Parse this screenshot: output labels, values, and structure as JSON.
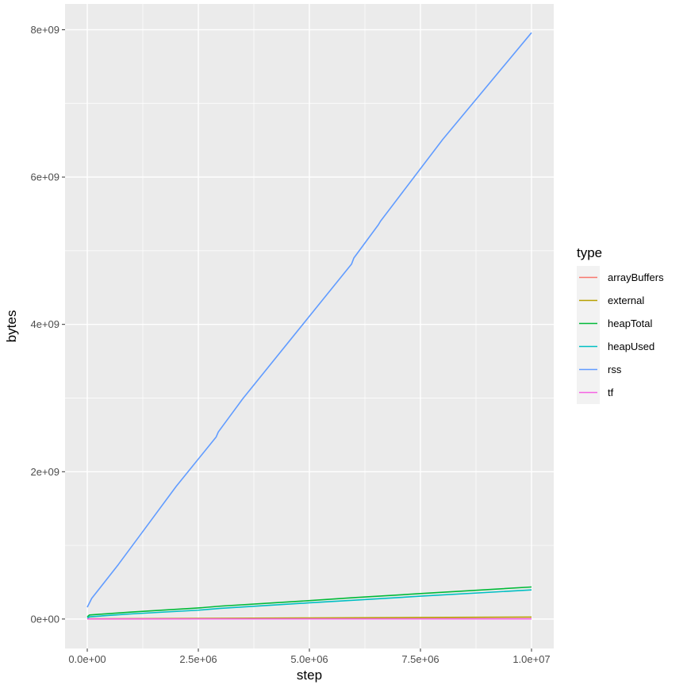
{
  "chart_data": {
    "type": "line",
    "xlabel": "step",
    "ylabel": "bytes",
    "xlim": [
      -500000,
      10500000
    ],
    "ylim": [
      -400000000,
      8350000000
    ],
    "x_ticks": [
      0,
      2500000,
      5000000,
      7500000,
      10000000
    ],
    "x_tick_labels": [
      "0.0e+00",
      "2.5e+06",
      "5.0e+06",
      "7.5e+06",
      "1.0e+07"
    ],
    "y_ticks": [
      0,
      2000000000,
      4000000000,
      6000000000,
      8000000000
    ],
    "y_tick_labels": [
      "0e+00",
      "2e+09",
      "4e+09",
      "6e+09",
      "8e+09"
    ],
    "grid": true,
    "legend": {
      "title": "type",
      "placement": "right"
    },
    "series": [
      {
        "name": "arrayBuffers",
        "color": "#F8766D",
        "x": [
          0,
          10000000
        ],
        "y": [
          1000000,
          3000000
        ]
      },
      {
        "name": "external",
        "color": "#B79F00",
        "x": [
          0,
          2500000,
          5000000,
          7500000,
          10000000
        ],
        "y": [
          3000000,
          9000000,
          15000000,
          21000000,
          27000000
        ]
      },
      {
        "name": "heapTotal",
        "color": "#00BA38",
        "x": [
          0,
          50000,
          1000000,
          2500000,
          3000000,
          5000000,
          6000000,
          7500000,
          10000000
        ],
        "y": [
          30000000,
          55000000,
          95000000,
          150000000,
          175000000,
          250000000,
          290000000,
          345000000,
          435000000
        ]
      },
      {
        "name": "heapUsed",
        "color": "#00BFC4",
        "x": [
          0,
          50000,
          1000000,
          2500000,
          3000000,
          5000000,
          6000000,
          7500000,
          10000000
        ],
        "y": [
          10000000,
          30000000,
          70000000,
          120000000,
          145000000,
          220000000,
          255000000,
          310000000,
          395000000
        ]
      },
      {
        "name": "rss",
        "color": "#619CFF",
        "x": [
          0,
          50000,
          100000,
          700000,
          1400000,
          2000000,
          2900000,
          2950000,
          3500000,
          5950000,
          6000000,
          6550000,
          6600000,
          8000000,
          10000000
        ],
        "y": [
          160000000,
          220000000,
          280000000,
          740000000,
          1310000000,
          1800000000,
          2470000000,
          2540000000,
          2990000000,
          4820000000,
          4900000000,
          5350000000,
          5400000000,
          6510000000,
          7960000000
        ]
      },
      {
        "name": "tf",
        "color": "#F564E3",
        "x": [
          0,
          10000000
        ],
        "y": [
          2000000,
          2000000
        ]
      }
    ]
  }
}
